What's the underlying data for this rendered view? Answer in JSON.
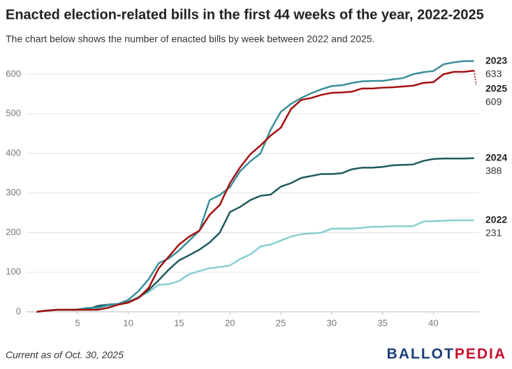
{
  "chart_data": {
    "type": "line",
    "title": "Enacted election-related bills in the first 44 weeks of the year, 2022-2025",
    "subtitle": "The chart below shows the number of enacted bills by week between 2022 and 2025.",
    "note": "Current as of Oct. 30, 2025",
    "logo": [
      "BALLOT",
      "PEDIA"
    ],
    "x": [
      1,
      2,
      3,
      4,
      5,
      6,
      7,
      8,
      9,
      10,
      11,
      12,
      13,
      14,
      15,
      16,
      17,
      18,
      19,
      20,
      21,
      22,
      23,
      24,
      25,
      26,
      27,
      28,
      29,
      30,
      31,
      32,
      33,
      34,
      35,
      36,
      37,
      38,
      39,
      40,
      41,
      42,
      43,
      44
    ],
    "series": [
      {
        "name": "2022",
        "color": "#86cfd3",
        "values": [
          0,
          3,
          5,
          5,
          5,
          7,
          10,
          15,
          18,
          25,
          38,
          50,
          68,
          70,
          78,
          95,
          103,
          110,
          113,
          117,
          133,
          145,
          165,
          170,
          180,
          190,
          196,
          198,
          200,
          210,
          210,
          210,
          212,
          215,
          215,
          216,
          216,
          216,
          228,
          229,
          230,
          231,
          231,
          231
        ]
      },
      {
        "name": "2024",
        "color": "#1f5a5e",
        "values": [
          0,
          3,
          5,
          5,
          5,
          6,
          15,
          18,
          20,
          25,
          35,
          55,
          80,
          107,
          130,
          143,
          157,
          175,
          200,
          252,
          265,
          282,
          293,
          296,
          316,
          325,
          338,
          343,
          348,
          348,
          350,
          360,
          364,
          364,
          366,
          370,
          371,
          372,
          381,
          386,
          387,
          387,
          387,
          388
        ]
      },
      {
        "name": "2023",
        "color": "#3a8f98",
        "values": [
          0,
          3,
          5,
          5,
          6,
          10,
          10,
          17,
          20,
          30,
          52,
          82,
          123,
          135,
          155,
          180,
          205,
          282,
          295,
          315,
          355,
          380,
          400,
          460,
          505,
          525,
          540,
          552,
          562,
          570,
          572,
          578,
          582,
          583,
          583,
          587,
          590,
          600,
          605,
          608,
          625,
          630,
          633,
          633
        ]
      },
      {
        "name": "2025",
        "color": "#a50f0f",
        "values": [
          0,
          3,
          5,
          5,
          5,
          5,
          5,
          10,
          18,
          23,
          35,
          60,
          110,
          140,
          170,
          190,
          205,
          245,
          270,
          325,
          365,
          398,
          420,
          445,
          465,
          512,
          535,
          540,
          548,
          553,
          554,
          556,
          564,
          564,
          566,
          567,
          569,
          571,
          578,
          580,
          600,
          606,
          606,
          609
        ]
      }
    ],
    "xlim": [
      0,
      44.5
    ],
    "xticks": [
      5,
      10,
      15,
      20,
      25,
      30,
      35,
      40
    ],
    "ylim": [
      0,
      650
    ],
    "yticks": [
      0,
      100,
      200,
      300,
      400,
      500,
      600
    ],
    "grid": true
  }
}
